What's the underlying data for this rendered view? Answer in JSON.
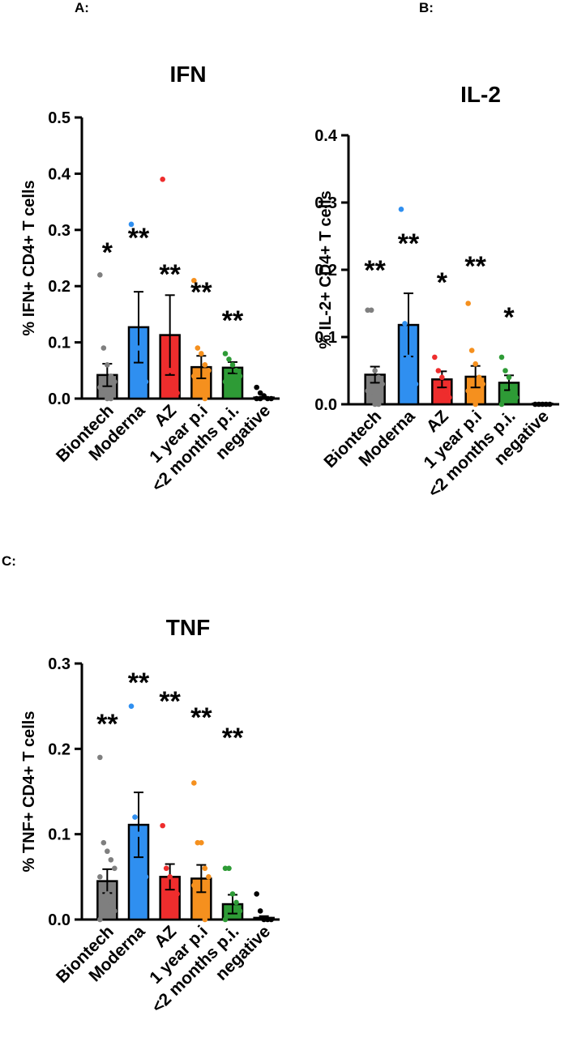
{
  "panels": [
    "A:",
    "B:",
    "C:"
  ],
  "colors": {
    "Biontech": "#7f7f7f",
    "Moderna": "#2f8ff0",
    "AZ": "#ee2d2d",
    "1 year p.i": "#f5901e",
    "<2 months p.i.": "#2e9b36",
    "negative": "#000000"
  },
  "chart_data": [
    {
      "type": "bar",
      "title": "IFN",
      "ylabel": "% IFN+ CD4+ T cells",
      "ylim": [
        0,
        0.5
      ],
      "yticks": [
        "0.0",
        "0.1",
        "0.2",
        "0.3",
        "0.4",
        "0.5"
      ],
      "categories": [
        "Biontech",
        "Moderna",
        "AZ",
        "1 year p.i",
        "<2 months p.i.",
        "negative"
      ],
      "values": [
        0.042,
        0.127,
        0.113,
        0.056,
        0.055,
        0.002
      ],
      "errors": [
        0.02,
        0.063,
        0.071,
        0.02,
        0.01,
        0.001
      ],
      "significance": [
        "*",
        "**",
        "**",
        "**",
        "**",
        ""
      ],
      "points": [
        [
          0.22,
          0.09,
          0.06,
          0.04,
          0.03,
          0.02,
          0.01,
          0.0,
          0.0
        ],
        [
          0.31,
          0.1,
          0.09,
          0.07,
          0.03
        ],
        [
          0.39,
          0.06,
          0.05,
          0.03,
          0.01
        ],
        [
          0.21,
          0.09,
          0.08,
          0.06,
          0.05,
          0.04,
          0.02,
          0.01,
          0.0
        ],
        [
          0.08,
          0.07,
          0.06,
          0.05,
          0.04,
          0.03
        ],
        [
          0.02,
          0.01,
          0.005,
          0.0,
          0.0,
          0.0,
          0.0
        ]
      ]
    },
    {
      "type": "bar",
      "title": "IL-2",
      "ylabel": "% IL-2+ CD4+ T cells",
      "ylim": [
        0,
        0.4
      ],
      "yticks": [
        "0.0",
        "0.1",
        "0.2",
        "0.3",
        "0.4"
      ],
      "categories": [
        "Biontech",
        "Moderna",
        "AZ",
        "1 year p.i",
        "<2 months p.i.",
        "negative"
      ],
      "values": [
        0.044,
        0.118,
        0.037,
        0.041,
        0.032,
        0.001
      ],
      "errors": [
        0.012,
        0.047,
        0.012,
        0.016,
        0.011,
        0.001
      ],
      "significance": [
        "**",
        "**",
        "*",
        "**",
        "*",
        ""
      ],
      "points": [
        [
          0.14,
          0.14,
          0.05,
          0.04,
          0.03,
          0.02,
          0.01,
          0.0,
          0.0
        ],
        [
          0.29,
          0.12,
          0.07,
          0.05,
          0.03
        ],
        [
          0.07,
          0.05,
          0.04,
          0.02,
          0.01
        ],
        [
          0.15,
          0.08,
          0.06,
          0.04,
          0.03,
          0.02,
          0.01,
          0.0
        ],
        [
          0.07,
          0.05,
          0.04,
          0.02,
          0.01,
          0.0
        ],
        [
          0.0,
          0.0,
          0.0,
          0.0,
          0.0
        ]
      ]
    },
    {
      "type": "bar",
      "title": "TNF",
      "ylabel": "% TNF+ CD4+ T cells",
      "ylim": [
        0,
        0.3
      ],
      "yticks": [
        "0.0",
        "0.1",
        "0.2",
        "0.3"
      ],
      "categories": [
        "Biontech",
        "Moderna",
        "AZ",
        "1 year p.i",
        "<2 months p.i.",
        "negative"
      ],
      "values": [
        0.045,
        0.111,
        0.05,
        0.048,
        0.018,
        0.002
      ],
      "errors": [
        0.014,
        0.038,
        0.015,
        0.016,
        0.011,
        0.002
      ],
      "significance": [
        "**",
        "**",
        "**",
        "**",
        "**",
        ""
      ],
      "points": [
        [
          0.19,
          0.09,
          0.08,
          0.07,
          0.06,
          0.05,
          0.04,
          0.03,
          0.02,
          0.01,
          0.0
        ],
        [
          0.25,
          0.12,
          0.1,
          0.08,
          0.05
        ],
        [
          0.11,
          0.06,
          0.05,
          0.04,
          0.03
        ],
        [
          0.16,
          0.09,
          0.09,
          0.06,
          0.05,
          0.04,
          0.02,
          0.01,
          0.0
        ],
        [
          0.06,
          0.06,
          0.03,
          0.02,
          0.01,
          0.0
        ],
        [
          0.03,
          0.01,
          0.0,
          0.0,
          0.0
        ]
      ]
    }
  ]
}
